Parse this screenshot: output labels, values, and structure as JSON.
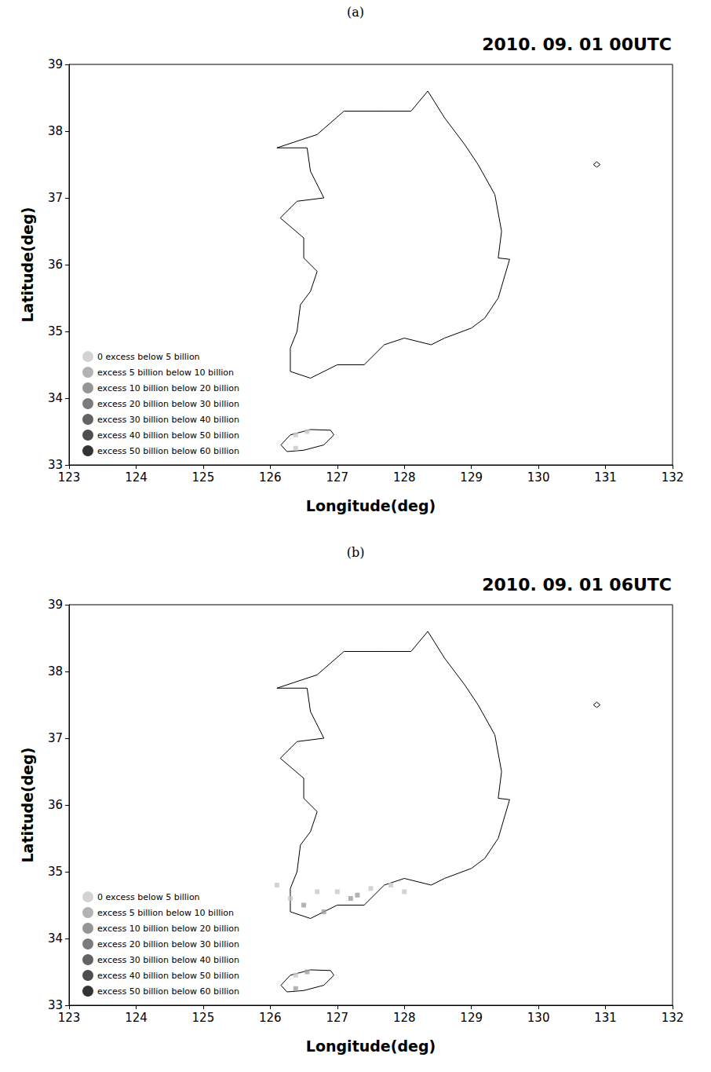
{
  "chart_data": [
    {
      "type": "scatter",
      "panel_label": "(a)",
      "title": "2010. 09. 01 00UTC",
      "x_label": "Longitude(deg)",
      "y_label": "Latitude(deg)",
      "xlim": [
        123,
        132
      ],
      "xticks": [
        123,
        124,
        125,
        126,
        127,
        128,
        129,
        130,
        131,
        132
      ],
      "ylim": [
        33,
        39
      ],
      "yticks": [
        33,
        34,
        35,
        36,
        37,
        38,
        39
      ],
      "legend": "lower left",
      "marker": "square",
      "series": [
        {
          "name": "0 excess below 5 billion",
          "color": "#c8c8c8",
          "x": [
            126.38,
            126.55,
            126.38
          ],
          "y": [
            33.45,
            33.5,
            33.25
          ]
        },
        {
          "name": "excess 5 billion below 10 billion",
          "color": "#a0a0a0",
          "x": [],
          "y": []
        },
        {
          "name": "excess 10 billion below 20 billion",
          "color": "#7a7a7a",
          "x": [],
          "y": []
        },
        {
          "name": "excess 20 billion below 30 billion",
          "color": "#5a5a5a",
          "x": [],
          "y": []
        },
        {
          "name": "excess 30 billion below 40 billion",
          "color": "#3c3c3c",
          "x": [],
          "y": []
        },
        {
          "name": "excess 40 billion below 50 billion",
          "color": "#222222",
          "x": [],
          "y": []
        },
        {
          "name": "excess 50 billion below 60 billion",
          "color": "#000000",
          "x": [],
          "y": []
        }
      ],
      "coastline": [
        [
          [
            126.1,
            37.75
          ],
          [
            126.7,
            37.95
          ],
          [
            127.1,
            38.3
          ],
          [
            127.6,
            38.3
          ],
          [
            128.1,
            38.3
          ],
          [
            128.35,
            38.6
          ],
          [
            128.6,
            38.2
          ],
          [
            128.9,
            37.8
          ],
          [
            129.1,
            37.5
          ],
          [
            129.35,
            37.05
          ],
          [
            129.45,
            36.5
          ],
          [
            129.4,
            36.1
          ],
          [
            129.57,
            36.08
          ],
          [
            129.4,
            35.5
          ],
          [
            129.2,
            35.2
          ],
          [
            129.0,
            35.05
          ],
          [
            128.6,
            34.9
          ],
          [
            128.4,
            34.8
          ],
          [
            128.0,
            34.9
          ],
          [
            127.7,
            34.8
          ],
          [
            127.4,
            34.5
          ],
          [
            127.0,
            34.5
          ],
          [
            126.6,
            34.3
          ],
          [
            126.3,
            34.4
          ],
          [
            126.3,
            34.75
          ],
          [
            126.4,
            35.0
          ],
          [
            126.45,
            35.4
          ],
          [
            126.6,
            35.6
          ],
          [
            126.7,
            35.9
          ],
          [
            126.5,
            36.1
          ],
          [
            126.5,
            36.4
          ],
          [
            126.15,
            36.7
          ],
          [
            126.4,
            36.95
          ],
          [
            126.8,
            37.0
          ],
          [
            126.6,
            37.4
          ],
          [
            126.55,
            37.75
          ],
          [
            126.1,
            37.75
          ]
        ],
        [
          [
            126.16,
            33.3
          ],
          [
            126.3,
            33.45
          ],
          [
            126.6,
            33.53
          ],
          [
            126.9,
            33.52
          ],
          [
            126.95,
            33.45
          ],
          [
            126.8,
            33.3
          ],
          [
            126.5,
            33.22
          ],
          [
            126.25,
            33.2
          ],
          [
            126.16,
            33.3
          ]
        ],
        [
          [
            130.82,
            37.5
          ],
          [
            130.87,
            37.54
          ],
          [
            130.92,
            37.5
          ],
          [
            130.87,
            37.46
          ],
          [
            130.82,
            37.5
          ]
        ]
      ]
    },
    {
      "type": "scatter",
      "panel_label": "(b)",
      "title": "2010. 09. 01 06UTC",
      "x_label": "Longitude(deg)",
      "y_label": "Latitude(deg)",
      "xlim": [
        123,
        132
      ],
      "xticks": [
        123,
        124,
        125,
        126,
        127,
        128,
        129,
        130,
        131,
        132
      ],
      "ylim": [
        33,
        39
      ],
      "yticks": [
        33,
        34,
        35,
        36,
        37,
        38,
        39
      ],
      "legend": "lower left",
      "marker": "square",
      "series": [
        {
          "name": "0 excess below 5 billion",
          "color": "#c8c8c8",
          "x": [
            126.1,
            126.3,
            126.7,
            127.0,
            127.5,
            127.8,
            128.0,
            126.38
          ],
          "y": [
            34.8,
            34.6,
            34.7,
            34.7,
            34.75,
            34.8,
            34.7,
            33.45
          ]
        },
        {
          "name": "excess 5 billion below 10 billion",
          "color": "#a0a0a0",
          "x": [
            126.5,
            126.8,
            127.2,
            127.3,
            126.55,
            126.38
          ],
          "y": [
            34.5,
            34.4,
            34.6,
            34.65,
            33.5,
            33.25
          ]
        },
        {
          "name": "excess 10 billion below 20 billion",
          "color": "#7a7a7a",
          "x": [],
          "y": []
        },
        {
          "name": "excess 20 billion below 30 billion",
          "color": "#5a5a5a",
          "x": [],
          "y": []
        },
        {
          "name": "excess 30 billion below 40 billion",
          "color": "#3c3c3c",
          "x": [],
          "y": []
        },
        {
          "name": "excess 40 billion below 50 billion",
          "color": "#222222",
          "x": [],
          "y": []
        },
        {
          "name": "excess 50 billion below 60 billion",
          "color": "#000000",
          "x": [],
          "y": []
        }
      ],
      "coastline": [
        [
          [
            126.1,
            37.75
          ],
          [
            126.7,
            37.95
          ],
          [
            127.1,
            38.3
          ],
          [
            127.6,
            38.3
          ],
          [
            128.1,
            38.3
          ],
          [
            128.35,
            38.6
          ],
          [
            128.6,
            38.2
          ],
          [
            128.9,
            37.8
          ],
          [
            129.1,
            37.5
          ],
          [
            129.35,
            37.05
          ],
          [
            129.45,
            36.5
          ],
          [
            129.4,
            36.1
          ],
          [
            129.57,
            36.08
          ],
          [
            129.4,
            35.5
          ],
          [
            129.2,
            35.2
          ],
          [
            129.0,
            35.05
          ],
          [
            128.6,
            34.9
          ],
          [
            128.4,
            34.8
          ],
          [
            128.0,
            34.9
          ],
          [
            127.7,
            34.8
          ],
          [
            127.4,
            34.5
          ],
          [
            127.0,
            34.5
          ],
          [
            126.6,
            34.3
          ],
          [
            126.3,
            34.4
          ],
          [
            126.3,
            34.75
          ],
          [
            126.4,
            35.0
          ],
          [
            126.45,
            35.4
          ],
          [
            126.6,
            35.6
          ],
          [
            126.7,
            35.9
          ],
          [
            126.5,
            36.1
          ],
          [
            126.5,
            36.4
          ],
          [
            126.15,
            36.7
          ],
          [
            126.4,
            36.95
          ],
          [
            126.8,
            37.0
          ],
          [
            126.6,
            37.4
          ],
          [
            126.55,
            37.75
          ],
          [
            126.1,
            37.75
          ]
        ],
        [
          [
            126.16,
            33.3
          ],
          [
            126.3,
            33.45
          ],
          [
            126.6,
            33.53
          ],
          [
            126.9,
            33.52
          ],
          [
            126.95,
            33.45
          ],
          [
            126.8,
            33.3
          ],
          [
            126.5,
            33.22
          ],
          [
            126.25,
            33.2
          ],
          [
            126.16,
            33.3
          ]
        ],
        [
          [
            130.82,
            37.5
          ],
          [
            130.87,
            37.54
          ],
          [
            130.92,
            37.5
          ],
          [
            130.87,
            37.46
          ],
          [
            130.82,
            37.5
          ]
        ]
      ]
    }
  ]
}
